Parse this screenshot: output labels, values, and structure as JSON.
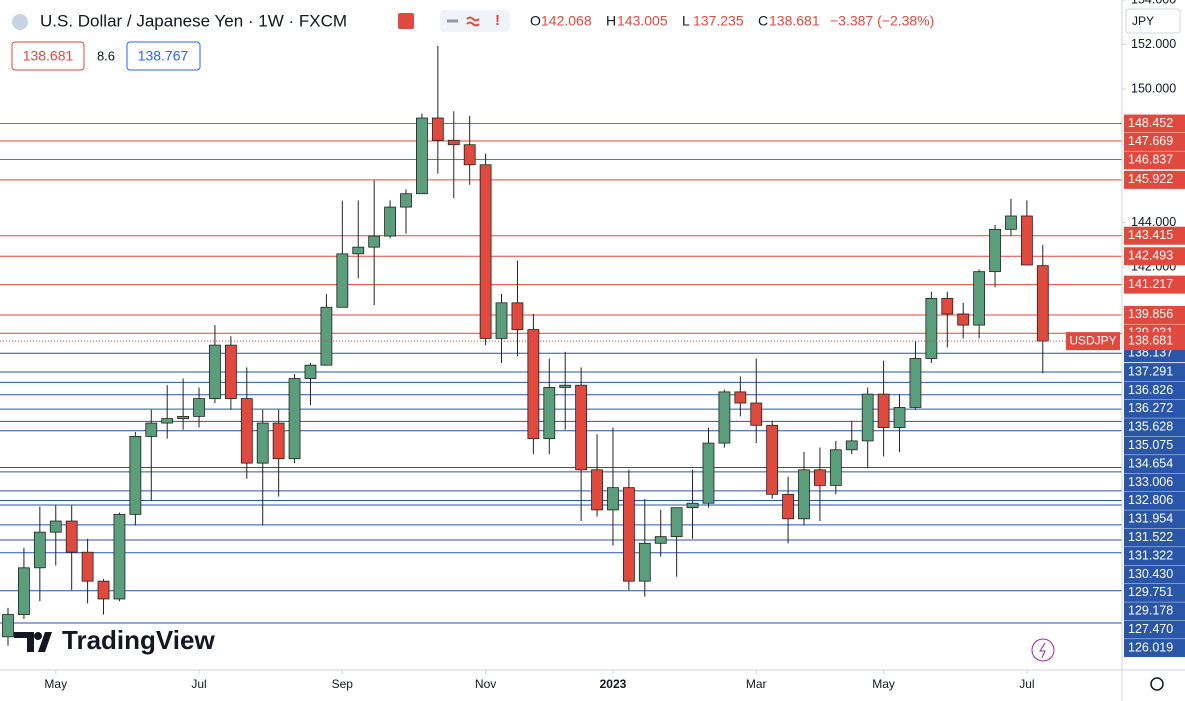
{
  "chart_data": {
    "type": "candlestick",
    "title": "U.S. Dollar / Japanese Yen · 1W · FXCM",
    "ohlc_labels": [
      "O",
      "H",
      "L",
      "C"
    ],
    "change": "−3.387 (−2.38%)",
    "spread": "8.6",
    "ask": "138.767",
    "currency": "JPY",
    "symbol": "USDJPY",
    "watermark": "TradingView",
    "categories": [
      null,
      null,
      null,
      "May",
      null,
      null,
      null,
      null,
      null,
      null,
      null,
      null,
      "Jul",
      null,
      null,
      null,
      null,
      null,
      null,
      null,
      null,
      "Sep",
      null,
      null,
      null,
      null,
      null,
      null,
      null,
      null,
      "Nov",
      null,
      null,
      null,
      null,
      null,
      null,
      null,
      "2023",
      null,
      null,
      null,
      null,
      null,
      null,
      null,
      null,
      "Mar",
      null,
      null,
      null,
      null,
      null,
      null,
      null,
      "May",
      null,
      null,
      null,
      null,
      null,
      null,
      null,
      null,
      "Jul",
      null
    ],
    "open": [
      125.4,
      126.4,
      128.5,
      130.1,
      130.6,
      129.2,
      127.9,
      127.1,
      130.9,
      134.4,
      135.0,
      135.2,
      135.3,
      136.1,
      138.5,
      136.1,
      133.2,
      135.0,
      133.4,
      137.0,
      137.6,
      140.2,
      142.6,
      142.9,
      143.4,
      144.7,
      145.3,
      148.7,
      147.7,
      147.5,
      146.6,
      138.8,
      140.4,
      139.2,
      134.3,
      136.6,
      136.7,
      132.9,
      131.1,
      132.1,
      127.9,
      129.6,
      129.9,
      131.2,
      131.4,
      134.1,
      136.4,
      135.9,
      134.9,
      131.8,
      130.7,
      132.9,
      132.2,
      133.8,
      134.2,
      136.3,
      134.8,
      135.7,
      137.9,
      140.6,
      139.9,
      139.4,
      141.8,
      143.7,
      144.3,
      142.068
    ],
    "high": [
      126.7,
      129.4,
      131.25,
      131.3,
      131.3,
      129.8,
      128.0,
      130.98,
      134.6,
      135.6,
      136.7,
      137.0,
      136.6,
      139.4,
      138.9,
      137.5,
      135.6,
      135.6,
      137.2,
      137.7,
      140.8,
      144.99,
      145.0,
      145.9,
      145.0,
      145.5,
      148.9,
      151.94,
      149.0,
      148.8,
      147.1,
      140.8,
      142.3,
      139.9,
      137.9,
      138.2,
      137.5,
      134.5,
      134.8,
      132.9,
      131.6,
      131.1,
      131.2,
      132.9,
      134.8,
      136.5,
      137.1,
      137.9,
      135.1,
      132.6,
      133.7,
      133.9,
      134.2,
      135.1,
      136.6,
      137.8,
      136.3,
      138.7,
      140.9,
      140.9,
      140.4,
      141.9,
      143.9,
      145.07,
      145.0,
      143.005
    ],
    "low": [
      125.0,
      126.2,
      127.0,
      128.6,
      127.5,
      126.9,
      126.4,
      127.0,
      130.4,
      131.5,
      134.3,
      134.7,
      134.8,
      135.9,
      135.6,
      132.5,
      130.4,
      131.7,
      133.2,
      135.8,
      137.6,
      140.2,
      141.5,
      140.3,
      143.3,
      143.5,
      145.3,
      146.2,
      145.1,
      145.7,
      138.5,
      137.7,
      138.0,
      133.6,
      133.6,
      134.7,
      130.6,
      130.8,
      129.5,
      127.5,
      127.2,
      129.0,
      128.1,
      129.8,
      131.2,
      133.9,
      135.3,
      134.1,
      131.6,
      129.6,
      130.4,
      130.6,
      131.8,
      133.6,
      133.0,
      133.5,
      133.7,
      135.6,
      137.7,
      138.4,
      138.8,
      138.8,
      141.1,
      143.4,
      142.1,
      137.235
    ],
    "close": [
      126.4,
      128.5,
      130.1,
      130.6,
      129.2,
      127.9,
      127.1,
      130.9,
      134.4,
      135.0,
      135.2,
      135.3,
      136.1,
      138.5,
      136.1,
      133.2,
      135.0,
      133.4,
      137.0,
      137.6,
      140.2,
      142.6,
      142.9,
      143.4,
      144.7,
      145.3,
      148.7,
      147.7,
      147.5,
      146.6,
      138.8,
      140.4,
      139.2,
      134.3,
      136.6,
      136.7,
      132.9,
      131.1,
      132.1,
      127.9,
      129.6,
      129.9,
      131.2,
      131.4,
      134.1,
      136.4,
      135.9,
      134.9,
      131.8,
      130.7,
      132.9,
      132.2,
      133.8,
      134.2,
      136.3,
      134.8,
      135.7,
      137.9,
      140.6,
      139.9,
      139.4,
      141.8,
      143.7,
      144.3,
      142.1,
      138.681
    ],
    "up_color": "#5b9e7b",
    "down_color": "#e0493e",
    "ylim": [
      124,
      154
    ],
    "yticks": [
      {
        "value": 154,
        "label": "154.000"
      },
      {
        "value": 152,
        "label": "152.000"
      },
      {
        "value": 150,
        "label": "150.000"
      },
      {
        "value": 144,
        "label": "144.000"
      },
      {
        "value": 142,
        "label": "142.000"
      }
    ],
    "levels": [
      {
        "value": 148.452,
        "label": "148.452"
      },
      {
        "value": 147.669,
        "label": "147.669"
      },
      {
        "value": 146.837,
        "label": "146.837"
      },
      {
        "value": 145.922,
        "label": "145.922"
      },
      {
        "value": 143.415,
        "label": "143.415"
      },
      {
        "value": 142.493,
        "label": "142.493"
      },
      {
        "value": 141.217,
        "label": "141.217"
      },
      {
        "value": 139.856,
        "label": "139.856"
      },
      {
        "value": 139.031,
        "label": "139.031"
      },
      {
        "value": 138.137,
        "label": "138.137"
      },
      {
        "value": 137.291,
        "label": "137.291"
      },
      {
        "value": 136.826,
        "label": "136.826"
      },
      {
        "value": 136.272,
        "label": "136.272"
      },
      {
        "value": 135.628,
        "label": "135.628"
      },
      {
        "value": 135.075,
        "label": "135.075"
      },
      {
        "value": 134.654,
        "label": "134.654"
      },
      {
        "value": 133.006,
        "label": "133.006"
      },
      {
        "value": 132.806,
        "label": "132.806"
      },
      {
        "value": 131.954,
        "label": "131.954"
      },
      {
        "value": 131.522,
        "label": "131.522"
      },
      {
        "value": 131.322,
        "label": "131.322"
      },
      {
        "value": 130.43,
        "label": "130.430"
      },
      {
        "value": 129.751,
        "label": "129.751"
      },
      {
        "value": 129.178,
        "label": "129.178"
      },
      {
        "value": 127.47,
        "label": "127.470"
      },
      {
        "value": 126.019,
        "label": "126.019"
      }
    ],
    "level_color_above": "#e0493e",
    "level_color_below": "#2a56a8"
  }
}
